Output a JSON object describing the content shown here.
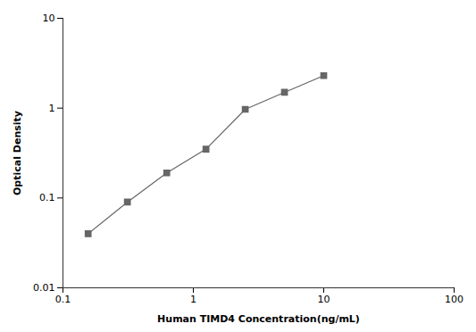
{
  "chart_data": {
    "type": "line",
    "x": [
      0.156,
      0.312,
      0.625,
      1.25,
      2.5,
      5.0,
      10.0
    ],
    "values": [
      0.04,
      0.09,
      0.19,
      0.35,
      0.97,
      1.5,
      2.3
    ],
    "xlabel": "Human TIMD4 Concentration(ng/mL)",
    "ylabel": "Optical Density",
    "xlim": [
      0.1,
      100
    ],
    "ylim": [
      0.01,
      10
    ],
    "xticks": [
      0.1,
      1,
      10,
      100
    ],
    "yticks": [
      0.01,
      0.1,
      1,
      10
    ],
    "log": true,
    "grid": false,
    "color": "#666666",
    "marker": "square",
    "line_style": "solid"
  }
}
